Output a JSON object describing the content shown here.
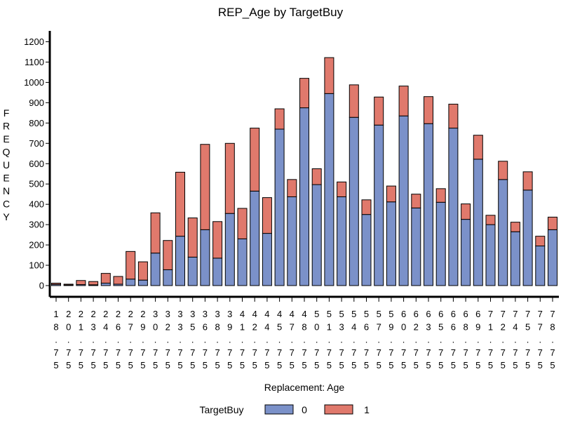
{
  "chart_data": {
    "type": "bar",
    "stacked": true,
    "title": "REP_Age by TargetBuy",
    "xlabel": "Replacement: Age",
    "ylabel": "FREQUENCY",
    "ylim": [
      0,
      1200
    ],
    "yticks": [
      0,
      100,
      200,
      300,
      400,
      500,
      600,
      700,
      800,
      900,
      1000,
      1100,
      1200
    ],
    "categories": [
      "18.75",
      "20.75",
      "21.75",
      "23.75",
      "24.75",
      "26.75",
      "27.75",
      "29.75",
      "30.75",
      "32.75",
      "33.75",
      "35.75",
      "36.75",
      "38.75",
      "39.75",
      "41.75",
      "42.75",
      "44.75",
      "45.75",
      "47.75",
      "48.75",
      "50.75",
      "51.75",
      "53.75",
      "54.75",
      "56.75",
      "57.75",
      "59.75",
      "60.75",
      "62.75",
      "63.75",
      "65.75",
      "66.75",
      "68.75",
      "69.75",
      "71.75",
      "72.75",
      "74.75",
      "75.75",
      "77.75",
      "78.75"
    ],
    "legend_title": "TargetBuy",
    "legend_position": "bottom",
    "series": [
      {
        "name": "0",
        "color": "#7b91c9",
        "values": [
          6,
          3,
          5,
          4,
          12,
          7,
          32,
          27,
          160,
          78,
          243,
          140,
          275,
          135,
          355,
          230,
          465,
          257,
          770,
          437,
          875,
          497,
          945,
          437,
          828,
          350,
          790,
          412,
          835,
          382,
          797,
          410,
          775,
          326,
          622,
          300,
          522,
          265,
          470,
          195,
          275
        ]
      },
      {
        "name": "1",
        "color": "#e0796c",
        "values": [
          6,
          4,
          20,
          16,
          48,
          38,
          136,
          90,
          198,
          144,
          315,
          193,
          420,
          180,
          345,
          150,
          310,
          176,
          100,
          85,
          145,
          78,
          177,
          73,
          160,
          72,
          138,
          78,
          147,
          68,
          133,
          67,
          118,
          76,
          118,
          46,
          90,
          47,
          90,
          48,
          62
        ]
      }
    ]
  }
}
